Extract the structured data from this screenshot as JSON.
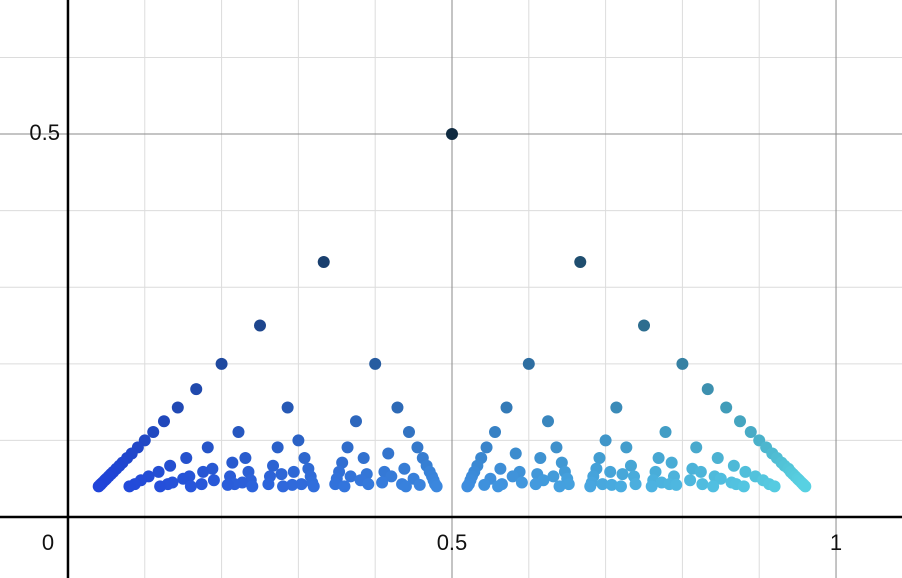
{
  "chart_data": {
    "type": "scatter",
    "xlim": [
      -0.0885,
      1.0859
    ],
    "ylim": [
      -0.0796,
      0.675
    ],
    "xticks": [
      0,
      0.5,
      1
    ],
    "yticks": [
      0.5
    ],
    "xminor": [
      0.1,
      0.2,
      0.3,
      0.4,
      0.6,
      0.7,
      0.8,
      0.9
    ],
    "yminor": [
      0.1,
      0.2,
      0.3,
      0.4,
      0.6
    ],
    "grid": true,
    "colors": {
      "left": "#1f3fe8",
      "right": "#62e8f2",
      "top": "#0f2a40"
    },
    "series": [
      {
        "y": 0.5,
        "x": [
          0.5
        ]
      },
      {
        "y": 0.333,
        "x": [
          0.333,
          0.667
        ]
      },
      {
        "y": 0.25,
        "x": [
          0.25,
          0.75
        ]
      },
      {
        "y": 0.2,
        "x": [
          0.2,
          0.4,
          0.6,
          0.8
        ]
      },
      {
        "y": 0.167,
        "x": [
          0.167,
          0.833
        ]
      },
      {
        "y": 0.143,
        "x": [
          0.143,
          0.286,
          0.429,
          0.571,
          0.714,
          0.857
        ]
      },
      {
        "y": 0.125,
        "x": [
          0.125,
          0.375,
          0.625,
          0.875
        ]
      },
      {
        "y": 0.111,
        "x": [
          0.111,
          0.222,
          0.444,
          0.556,
          0.778,
          0.889
        ]
      },
      {
        "y": 0.1,
        "x": [
          0.1,
          0.3,
          0.7,
          0.9
        ]
      },
      {
        "y": 0.091,
        "x": [
          0.091,
          0.182,
          0.273,
          0.364,
          0.455,
          0.545,
          0.636,
          0.727,
          0.818,
          0.909
        ]
      },
      {
        "y": 0.083,
        "x": [
          0.083,
          0.417,
          0.583,
          0.917
        ]
      },
      {
        "y": 0.077,
        "x": [
          0.077,
          0.154,
          0.231,
          0.308,
          0.385,
          0.462,
          0.538,
          0.615,
          0.692,
          0.769,
          0.846,
          0.923
        ]
      },
      {
        "y": 0.071,
        "x": [
          0.071,
          0.214,
          0.357,
          0.643,
          0.786,
          0.929
        ]
      },
      {
        "y": 0.067,
        "x": [
          0.067,
          0.133,
          0.267,
          0.467,
          0.533,
          0.733,
          0.867,
          0.933
        ]
      },
      {
        "y": 0.063,
        "x": [
          0.063,
          0.188,
          0.313,
          0.438,
          0.563,
          0.688,
          0.813,
          0.938
        ]
      },
      {
        "y": 0.059,
        "x": [
          0.059,
          0.118,
          0.176,
          0.235,
          0.294,
          0.353,
          0.412,
          0.471,
          0.529,
          0.588,
          0.647,
          0.706,
          0.765,
          0.824,
          0.882,
          0.941
        ]
      },
      {
        "y": 0.056,
        "x": [
          0.056,
          0.278,
          0.389,
          0.611,
          0.722,
          0.944
        ]
      },
      {
        "y": 0.053,
        "x": [
          0.053,
          0.105,
          0.158,
          0.211,
          0.263,
          0.316,
          0.368,
          0.421,
          0.474,
          0.526,
          0.579,
          0.632,
          0.684,
          0.737,
          0.789,
          0.842,
          0.895,
          0.947
        ]
      },
      {
        "y": 0.05,
        "x": [
          0.05,
          0.15,
          0.35,
          0.45,
          0.55,
          0.65,
          0.85,
          0.95
        ]
      },
      {
        "y": 0.048,
        "x": [
          0.048,
          0.095,
          0.19,
          0.238,
          0.381,
          0.476,
          0.524,
          0.619,
          0.762,
          0.81,
          0.905,
          0.952
        ]
      },
      {
        "y": 0.045,
        "x": [
          0.045,
          0.136,
          0.227,
          0.318,
          0.409,
          0.591,
          0.682,
          0.773,
          0.864,
          0.955
        ]
      },
      {
        "y": 0.043,
        "x": [
          0.043,
          0.087,
          0.13,
          0.174,
          0.217,
          0.261,
          0.304,
          0.348,
          0.391,
          0.435,
          0.478,
          0.522,
          0.565,
          0.609,
          0.652,
          0.696,
          0.739,
          0.783,
          0.826,
          0.87,
          0.913,
          0.957
        ]
      },
      {
        "y": 0.042,
        "x": [
          0.042,
          0.208,
          0.292,
          0.458,
          0.542,
          0.708,
          0.792,
          0.958
        ]
      },
      {
        "y": 0.04,
        "x": [
          0.04,
          0.08,
          0.12,
          0.16,
          0.24,
          0.28,
          0.32,
          0.36,
          0.44,
          0.48,
          0.52,
          0.56,
          0.64,
          0.68,
          0.72,
          0.76,
          0.84,
          0.88,
          0.92,
          0.96
        ]
      }
    ]
  }
}
